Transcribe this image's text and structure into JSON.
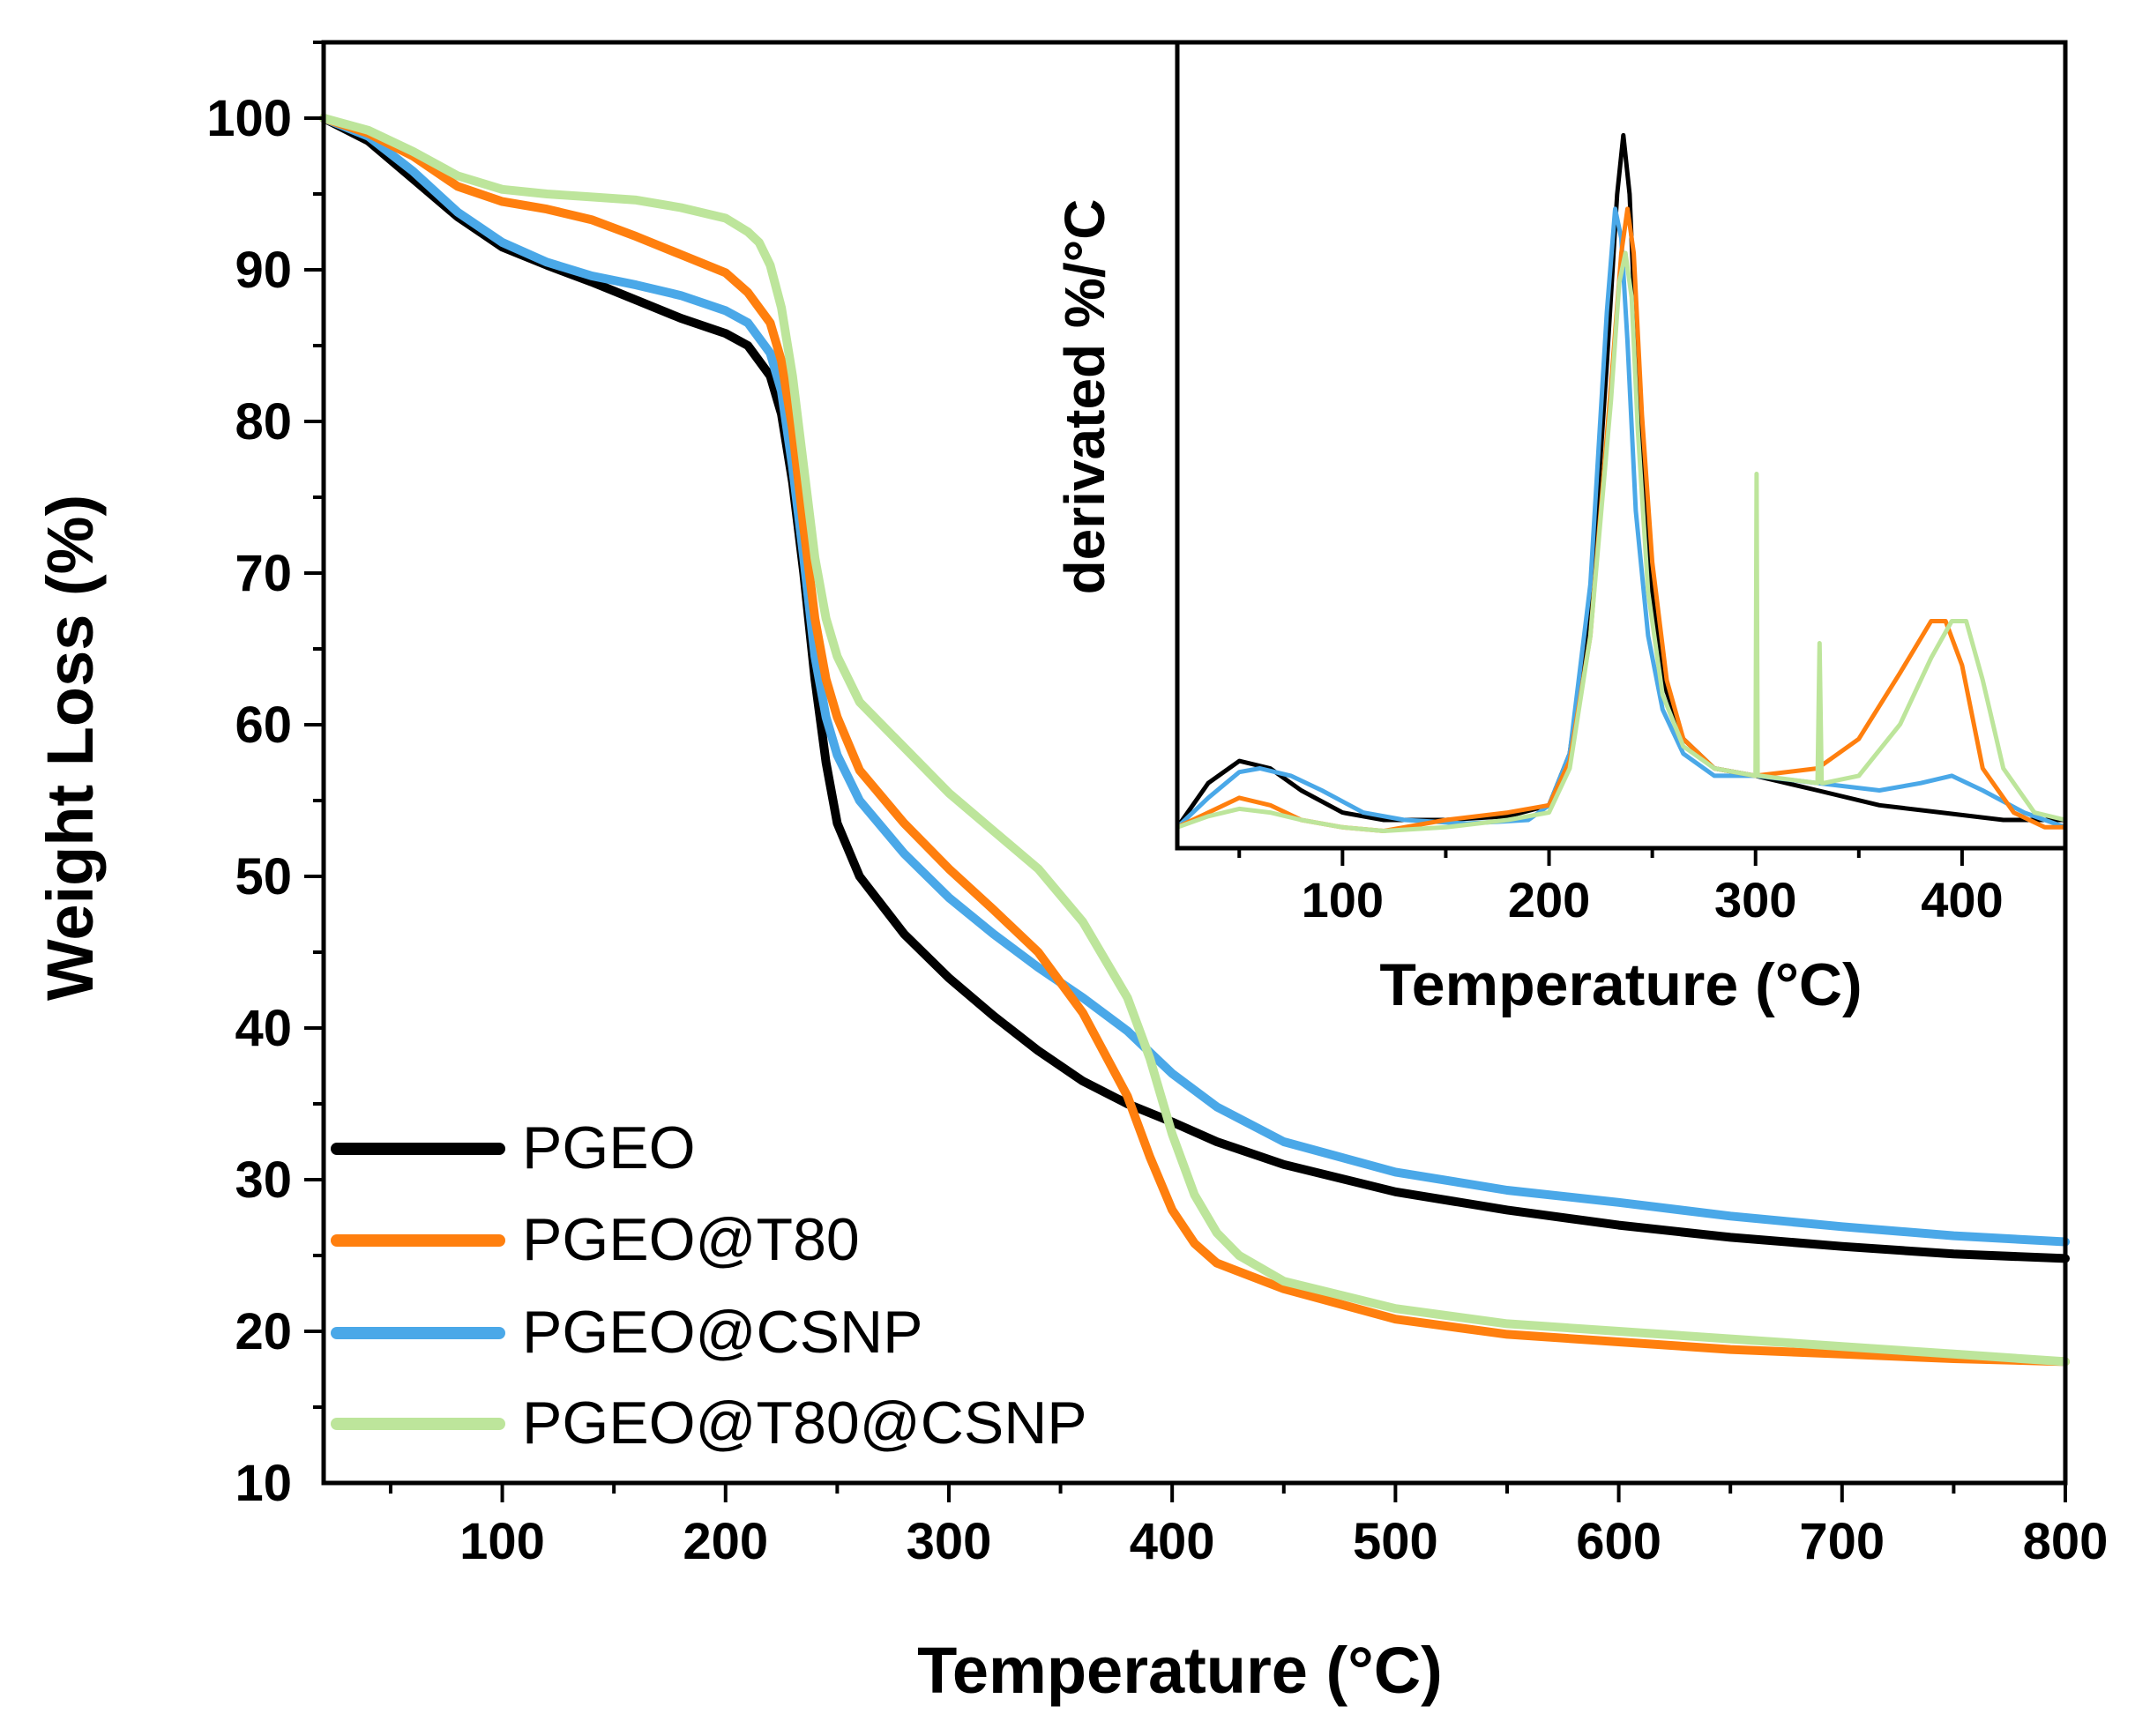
{
  "colors": {
    "PGEO": "#000000",
    "PGEO@T80": "#ff7f0e",
    "PGEO@CSNP": "#4aa8e8",
    "PGEO@T80@CSNP": "#bde59b"
  },
  "chart_data": [
    {
      "id": "main",
      "type": "line",
      "title": "",
      "xlabel": "Temperature (°C)",
      "ylabel": "Weight Loss (%)",
      "xlim": [
        20,
        800
      ],
      "ylim": [
        10,
        105
      ],
      "xticks": [
        100,
        200,
        300,
        400,
        500,
        600,
        700,
        800
      ],
      "yticks": [
        10,
        20,
        30,
        40,
        50,
        60,
        70,
        80,
        90,
        100
      ],
      "legend_position": "bottom-left",
      "series": [
        {
          "name": "PGEO",
          "x": [
            20,
            40,
            60,
            80,
            100,
            120,
            140,
            160,
            180,
            200,
            210,
            220,
            225,
            230,
            235,
            240,
            245,
            250,
            260,
            280,
            300,
            320,
            340,
            360,
            380,
            400,
            420,
            450,
            500,
            550,
            600,
            650,
            700,
            750,
            800
          ],
          "y": [
            100,
            98.5,
            96,
            93.5,
            91.5,
            90.3,
            89.2,
            88,
            86.8,
            85.8,
            85,
            83,
            80.5,
            76,
            70,
            63,
            57.5,
            53.5,
            50,
            46.2,
            43.3,
            40.8,
            38.5,
            36.5,
            35,
            33.8,
            32.5,
            31,
            29.2,
            28,
            27,
            26.2,
            25.6,
            25.1,
            24.8
          ]
        },
        {
          "name": "PGEO@T80",
          "x": [
            20,
            40,
            60,
            80,
            100,
            120,
            140,
            160,
            180,
            200,
            210,
            220,
            225,
            230,
            235,
            240,
            245,
            250,
            260,
            280,
            300,
            320,
            340,
            360,
            380,
            390,
            400,
            410,
            420,
            450,
            500,
            550,
            600,
            650,
            700,
            750,
            800
          ],
          "y": [
            100,
            99,
            97.5,
            95.5,
            94.5,
            94,
            93.3,
            92.2,
            91,
            89.8,
            88.5,
            86.5,
            84,
            79.5,
            73,
            67,
            63,
            60.5,
            57,
            53.5,
            50.5,
            47.8,
            45,
            41,
            35.5,
            31.5,
            28,
            25.8,
            24.5,
            22.8,
            20.8,
            19.8,
            19.3,
            18.8,
            18.5,
            18.2,
            18
          ]
        },
        {
          "name": "PGEO@CSNP",
          "x": [
            20,
            40,
            60,
            80,
            100,
            120,
            140,
            160,
            180,
            200,
            210,
            220,
            225,
            230,
            235,
            240,
            245,
            250,
            260,
            280,
            300,
            320,
            340,
            360,
            380,
            400,
            420,
            450,
            500,
            550,
            600,
            650,
            700,
            750,
            800
          ],
          "y": [
            100,
            98.8,
            96.5,
            93.8,
            91.8,
            90.5,
            89.6,
            89,
            88.3,
            87.3,
            86.5,
            84.5,
            82,
            77,
            71,
            64.5,
            60.5,
            58,
            55,
            51.5,
            48.6,
            46.2,
            44,
            42,
            39.8,
            37,
            34.8,
            32.5,
            30.5,
            29.3,
            28.5,
            27.6,
            26.9,
            26.3,
            25.9
          ]
        },
        {
          "name": "PGEO@T80@CSNP",
          "x": [
            20,
            40,
            60,
            80,
            100,
            120,
            140,
            160,
            180,
            200,
            210,
            215,
            220,
            225,
            230,
            235,
            240,
            245,
            250,
            260,
            280,
            300,
            320,
            340,
            360,
            380,
            390,
            400,
            410,
            420,
            430,
            450,
            500,
            550,
            600,
            650,
            700,
            750,
            800
          ],
          "y": [
            100,
            99.2,
            97.8,
            96.2,
            95.3,
            95,
            94.8,
            94.6,
            94.1,
            93.4,
            92.5,
            91.8,
            90.3,
            87.5,
            83,
            77,
            71,
            67,
            64.5,
            61.5,
            58.5,
            55.5,
            53,
            50.5,
            47,
            42,
            38,
            33,
            29,
            26.5,
            25,
            23.3,
            21.5,
            20.5,
            20,
            19.5,
            19,
            18.5,
            18
          ]
        }
      ],
      "legend": [
        "PGEO",
        "PGEO@T80",
        "PGEO@CSNP",
        "PGEO@T80@CSNP"
      ]
    },
    {
      "id": "inset",
      "type": "line",
      "title": "",
      "xlabel": "Temperature (°C)",
      "ylabel": "derivated %/°C",
      "xlim": [
        20,
        450
      ],
      "ylim": [
        0,
        100
      ],
      "xticks": [
        100,
        200,
        300,
        400
      ],
      "yticks": [],
      "series": [
        {
          "name": "PGEO",
          "x": [
            20,
            35,
            50,
            65,
            80,
            100,
            120,
            150,
            180,
            200,
            210,
            220,
            228,
            233,
            236,
            239,
            243,
            248,
            255,
            265,
            280,
            300,
            330,
            360,
            390,
            420,
            450
          ],
          "y": [
            2,
            8,
            11,
            10,
            7,
            4,
            3,
            3,
            3.5,
            5,
            12,
            32,
            65,
            88,
            96,
            88,
            62,
            38,
            22,
            14,
            10,
            9,
            7,
            5,
            4,
            3,
            3
          ]
        },
        {
          "name": "PGEO@T80",
          "x": [
            20,
            35,
            50,
            65,
            80,
            100,
            120,
            150,
            180,
            200,
            210,
            220,
            230,
            235,
            238,
            241,
            245,
            250,
            257,
            265,
            280,
            300,
            330,
            350,
            370,
            385,
            392,
            400,
            410,
            425,
            440,
            450
          ],
          "y": [
            2,
            4,
            6,
            5,
            3,
            2,
            1.5,
            3,
            4,
            5,
            11,
            28,
            62,
            80,
            86,
            80,
            58,
            38,
            22,
            14,
            10,
            9,
            10,
            14,
            23,
            30,
            30,
            24,
            10,
            4,
            2,
            2
          ]
        },
        {
          "name": "PGEO@CSNP",
          "x": [
            20,
            35,
            50,
            60,
            75,
            90,
            110,
            130,
            160,
            190,
            200,
            210,
            220,
            228,
            232,
            235,
            238,
            242,
            248,
            255,
            265,
            280,
            300,
            330,
            360,
            380,
            395,
            410,
            430,
            450
          ],
          "y": [
            2,
            6,
            9.5,
            10,
            9,
            7,
            4,
            3,
            2.5,
            3,
            5,
            12,
            35,
            72,
            86,
            82,
            68,
            45,
            28,
            18,
            12,
            9,
            9,
            8,
            7,
            8,
            9,
            7,
            4,
            2
          ]
        },
        {
          "name": "PGEO@T80@CSNP",
          "x": [
            20,
            35,
            50,
            65,
            80,
            100,
            120,
            150,
            180,
            200,
            210,
            220,
            230,
            234,
            237,
            240,
            243,
            248,
            255,
            265,
            280,
            300,
            300.5,
            301,
            302,
            330,
            331,
            332,
            333,
            350,
            370,
            385,
            395,
            402,
            410,
            420,
            435,
            450
          ],
          "y": [
            2,
            3.5,
            4.5,
            4,
            3,
            2,
            1.5,
            2,
            3,
            4,
            10,
            28,
            60,
            76,
            80,
            74,
            56,
            34,
            20,
            13,
            10,
            9,
            50,
            9,
            9,
            8,
            27,
            8,
            8,
            9,
            16,
            25,
            30,
            30,
            22,
            10,
            4,
            3
          ]
        }
      ]
    }
  ]
}
